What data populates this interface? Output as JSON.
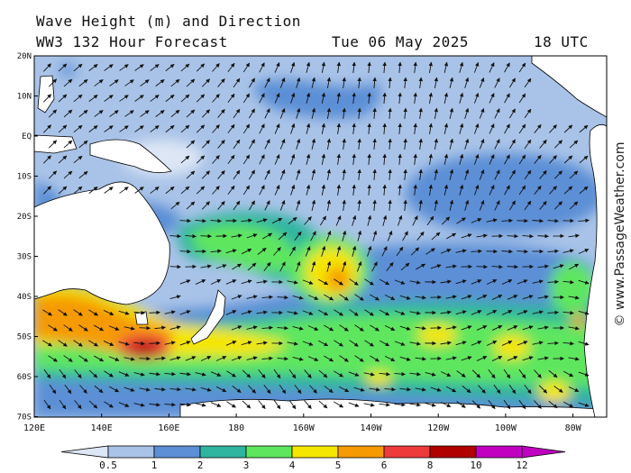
{
  "header": {
    "title_line1": "Wave Height (m) and Direction",
    "title_line2": "WW3 132 Hour Forecast",
    "date": "Tue 06 May 2025",
    "time": "18 UTC"
  },
  "credit": "© www.PassageWeather.com",
  "map": {
    "lat_labels": [
      "20N",
      "10N",
      "EQ",
      "10S",
      "20S",
      "30S",
      "40S",
      "50S",
      "60S",
      "70S"
    ],
    "lon_labels": [
      "120E",
      "140E",
      "160E",
      "180",
      "160W",
      "140W",
      "120W",
      "100W",
      "80W"
    ]
  },
  "colorbar": {
    "labels": [
      "0.5",
      "1",
      "2",
      "3",
      "4",
      "5",
      "6",
      "8",
      "10",
      "12"
    ],
    "colors": [
      "#dde6f5",
      "#a9c3e8",
      "#5c8fd6",
      "#2fb4a0",
      "#5ee65e",
      "#f5e600",
      "#f59a00",
      "#ee3a3a",
      "#b00000",
      "#c000c0"
    ]
  }
}
